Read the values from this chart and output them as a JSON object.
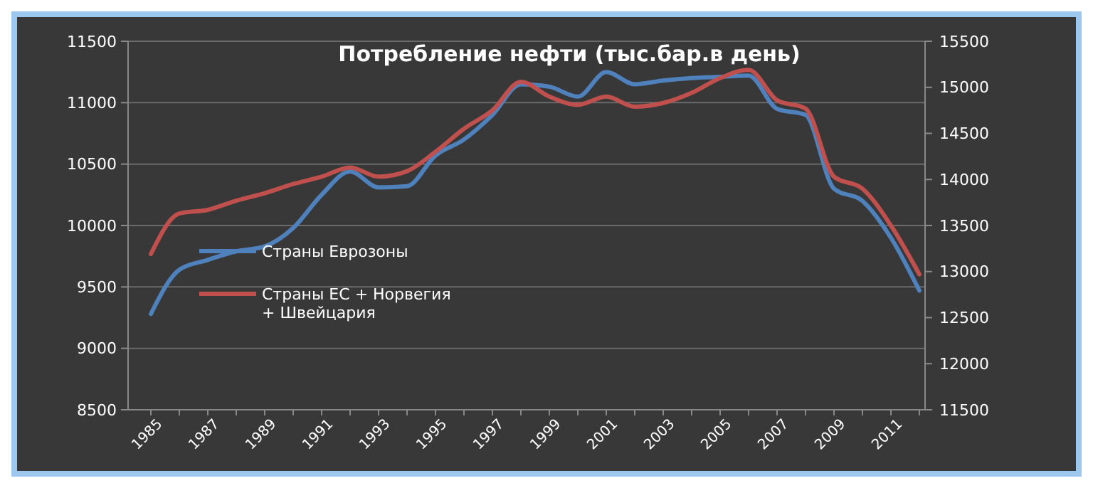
{
  "chart_data": {
    "type": "line",
    "title": "Потребление нефти (тыс.бар.в день)",
    "categories": [
      "1985",
      null,
      "1987",
      null,
      "1989",
      null,
      "1991",
      null,
      "1993",
      null,
      "1995",
      null,
      "1997",
      null,
      "1999",
      null,
      "2001",
      null,
      "2003",
      null,
      "2005",
      null,
      "2007",
      null,
      "2009",
      null,
      "2011",
      null
    ],
    "series": [
      {
        "name": "Страны Еврозоны",
        "color": "#4f81bd",
        "values": [
          9280,
          9640,
          9720,
          9790,
          9830,
          9980,
          10250,
          10440,
          10310,
          10320,
          10570,
          10700,
          10900,
          11150,
          11130,
          11050,
          11250,
          11150,
          11180,
          11200,
          11210,
          11220,
          10950,
          10900,
          10300,
          10200,
          9900,
          9470
        ]
      },
      {
        "name": "Страны ЕС + Норвегия\n+ Швейцария",
        "color": "#c0504d",
        "axis": "y2",
        "values": [
          13190,
          13630,
          13670,
          13770,
          13850,
          13950,
          14030,
          14130,
          14030,
          14090,
          14300,
          14550,
          14750,
          15060,
          14900,
          14810,
          14900,
          14790,
          14830,
          14940,
          15100,
          15190,
          14860,
          14770,
          14030,
          13900,
          13500,
          12970
        ]
      }
    ],
    "ylim": [
      8500,
      11500
    ],
    "yticks": [
      8500,
      9000,
      9500,
      10000,
      10500,
      11000,
      11500
    ],
    "y2lim": [
      11500,
      15500
    ],
    "y2ticks": [
      11500,
      12000,
      12500,
      13000,
      13500,
      14000,
      14500,
      15000,
      15500
    ],
    "grid": "y",
    "legend": "left",
    "marker": "none",
    "line_style": "solid"
  }
}
